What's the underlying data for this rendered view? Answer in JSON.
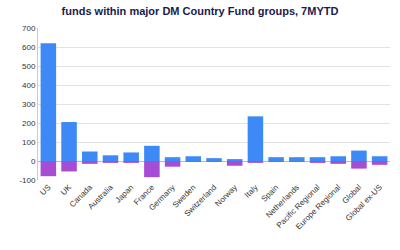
{
  "chart_data": {
    "type": "bar",
    "title": "funds within major DM Country Fund groups, 7MYTD",
    "categories": [
      "US",
      "UK",
      "Canada",
      "Australia",
      "Japan",
      "France",
      "Germany",
      "Sweden",
      "Switzerland",
      "Norway",
      "Italy",
      "Spain",
      "Netherlands",
      "Pacific Regional",
      "Europe Regional",
      "Global",
      "Global ex-US"
    ],
    "series": [
      {
        "color": "#3d8af7",
        "values": [
          620,
          205,
          50,
          30,
          45,
          80,
          20,
          25,
          15,
          10,
          235,
          20,
          20,
          20,
          25,
          55,
          25
        ]
      },
      {
        "color": "#a64dd6",
        "values": [
          -80,
          -55,
          -15,
          -10,
          -10,
          -85,
          -30,
          -5,
          -5,
          -25,
          -10,
          -5,
          -5,
          -10,
          -15,
          -40,
          -20
        ]
      }
    ],
    "stacked": true,
    "ylim": [
      -100,
      700
    ],
    "yticks": [
      -100,
      0,
      100,
      200,
      300,
      400,
      500,
      600,
      700
    ],
    "grid": true
  }
}
